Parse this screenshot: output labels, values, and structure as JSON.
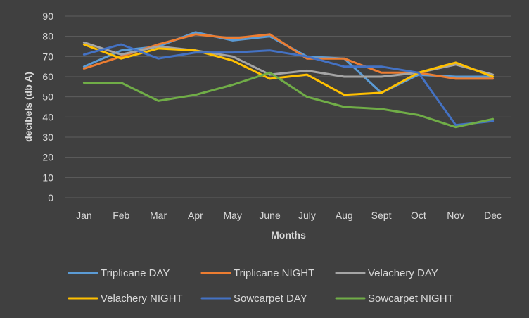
{
  "chart_data": {
    "type": "line",
    "title": "",
    "xlabel": "Months",
    "ylabel": "decibels (db A)",
    "ylim": [
      0,
      90
    ],
    "yticks": [
      0,
      10,
      20,
      30,
      40,
      50,
      60,
      70,
      80,
      90
    ],
    "grid": true,
    "legend_position": "bottom",
    "categories": [
      "Jan",
      "Feb",
      "Mar",
      "Apr",
      "May",
      "June",
      "July",
      "Aug",
      "Sept",
      "Oct",
      "Nov",
      "Dec"
    ],
    "series": [
      {
        "name": "Triplicane  DAY",
        "color": "#5b9bd5",
        "values": [
          65,
          73,
          75,
          82,
          78,
          80,
          70,
          69,
          52,
          61,
          60,
          60
        ]
      },
      {
        "name": "Triplicane  NIGHT",
        "color": "#ed7d31",
        "values": [
          64,
          70,
          76,
          81,
          79,
          81,
          69,
          69,
          62,
          62,
          59,
          59
        ]
      },
      {
        "name": "Velachery  DAY",
        "color": "#a5a5a5",
        "values": [
          77,
          71,
          75,
          73,
          70,
          61,
          63,
          60,
          60,
          62,
          66,
          61
        ]
      },
      {
        "name": "Velachery  NIGHT",
        "color": "#ffc000",
        "values": [
          76,
          69,
          74,
          73,
          68,
          59,
          61,
          51,
          52,
          62,
          67,
          60
        ]
      },
      {
        "name": "Sowcarpet  DAY",
        "color": "#4472c4",
        "values": [
          71,
          76,
          69,
          72,
          72,
          73,
          70,
          65,
          65,
          62,
          36,
          38
        ]
      },
      {
        "name": "Sowcarpet  NIGHT",
        "color": "#70ad47",
        "values": [
          57,
          57,
          48,
          51,
          56,
          62,
          50,
          45,
          44,
          41,
          35,
          39
        ]
      }
    ]
  }
}
